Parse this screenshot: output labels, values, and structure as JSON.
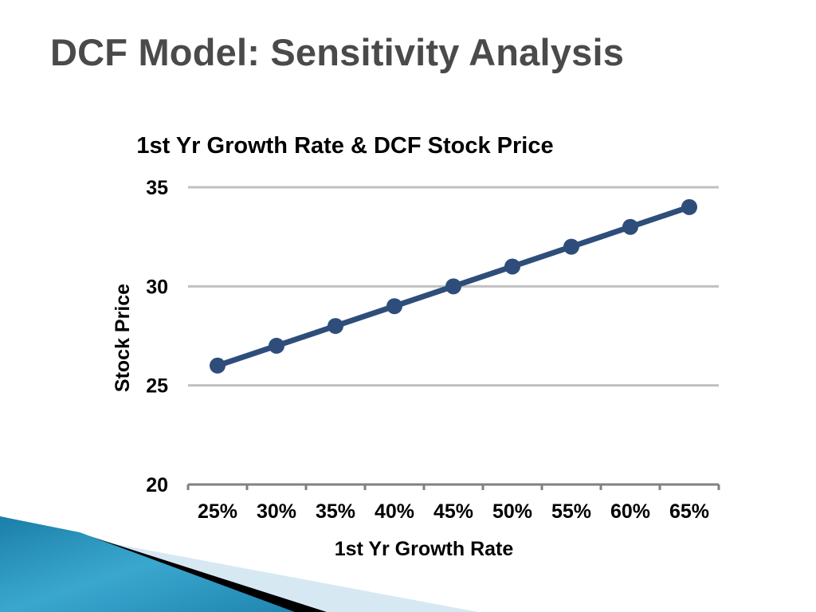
{
  "slide": {
    "title": "DCF Model: Sensitivity Analysis"
  },
  "colors": {
    "title": "#4a4a4a",
    "series_line": "#2e4d7b",
    "gridline": "#c0c0c0",
    "axis": "#808080",
    "decor_blue": "#1f8fb8",
    "decor_black": "#000000",
    "decor_light": "#d6e9f3"
  },
  "chart_data": {
    "type": "line",
    "title": "1st Yr Growth Rate & DCF Stock Price",
    "xlabel": "1st Yr Growth Rate",
    "ylabel": "Stock Price",
    "categories": [
      "25%",
      "30%",
      "35%",
      "40%",
      "45%",
      "50%",
      "55%",
      "60%",
      "65%"
    ],
    "series": [
      {
        "values": [
          26,
          27,
          28,
          29,
          30,
          31,
          32,
          33,
          34
        ]
      }
    ],
    "ylim": [
      20,
      35
    ],
    "yticks": [
      "20",
      "25",
      "30",
      "35"
    ],
    "grid": true,
    "legend": "none",
    "markers": true
  }
}
